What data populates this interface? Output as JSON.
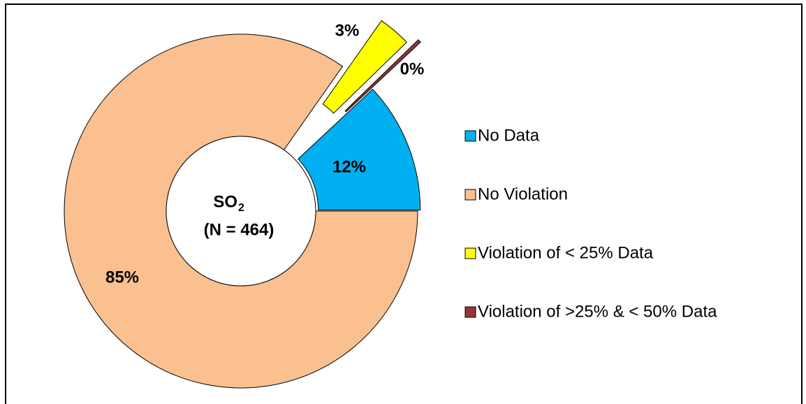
{
  "chart_data": {
    "type": "pie",
    "center_label": {
      "text": "SO",
      "subscript": "2",
      "line2": "(N = 464)"
    },
    "categories": [
      "No Data",
      "No Violation",
      "Violation of < 25% Data",
      "Violation of >25% & < 50% Data"
    ],
    "values": [
      12,
      85,
      3,
      0.3
    ],
    "value_labels": [
      "12%",
      "85%",
      "3%",
      "0%"
    ],
    "colors": [
      "#00b0f0",
      "#fac090",
      "#ffff00",
      "#953735"
    ],
    "legend": "right"
  }
}
